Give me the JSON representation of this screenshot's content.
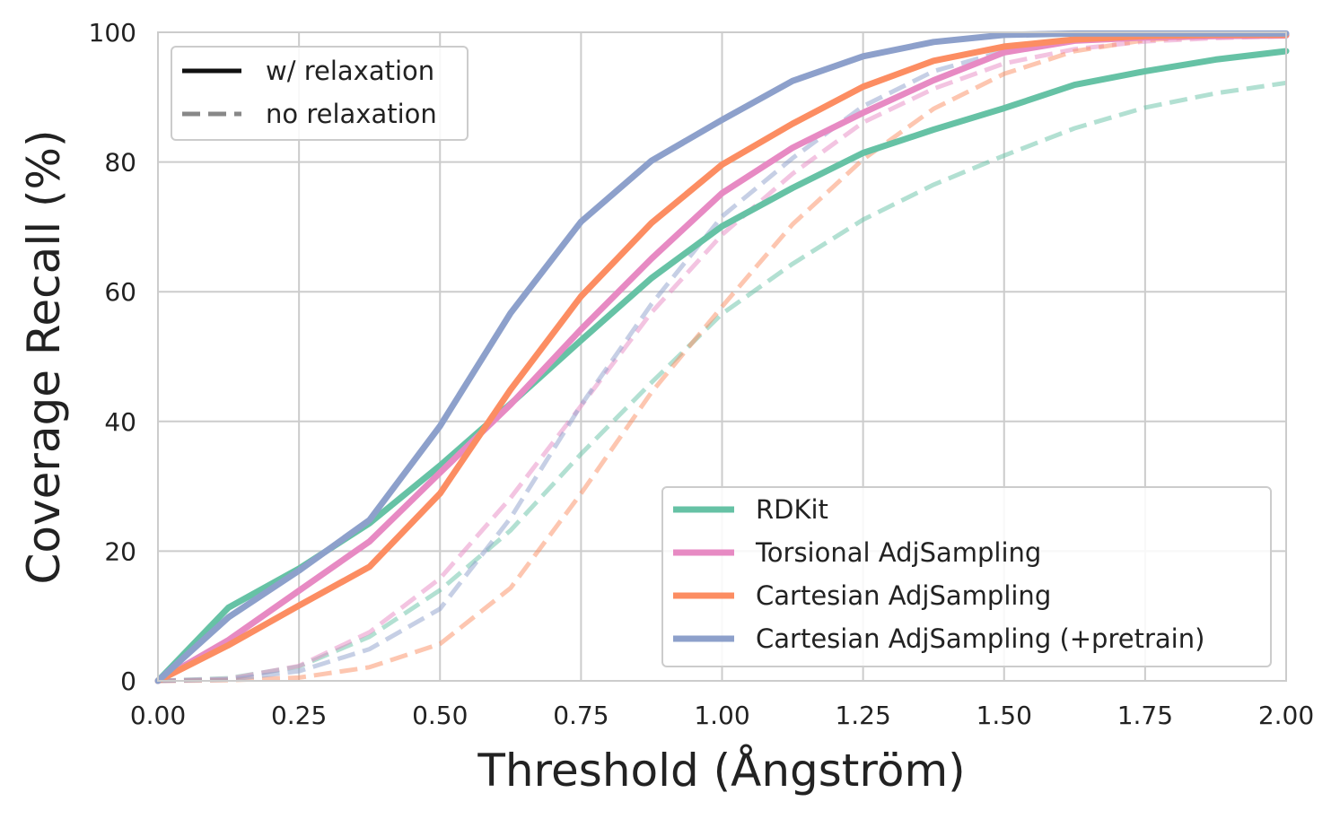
{
  "chart_data": {
    "type": "line",
    "title": "",
    "xlabel": "Threshold (Ångström)",
    "ylabel": "Coverage Recall (%)",
    "xlim": [
      0,
      2
    ],
    "ylim": [
      0,
      100
    ],
    "grid": true,
    "x_ticks": [
      "0.00",
      "0.25",
      "0.50",
      "0.75",
      "1.00",
      "1.25",
      "1.50",
      "1.75",
      "2.00"
    ],
    "y_ticks": [
      "0",
      "20",
      "40",
      "60",
      "80",
      "100"
    ],
    "style_legend": {
      "placement": "top-left",
      "entries": [
        {
          "label": "w/ relaxation",
          "dash": "solid",
          "color": "#111111"
        },
        {
          "label": "no relaxation",
          "dash": "dashed",
          "color": "#888888"
        }
      ]
    },
    "series_legend_placement": "bottom-right",
    "x": [
      0,
      0.125,
      0.25,
      0.375,
      0.5,
      0.625,
      0.75,
      0.875,
      1.0,
      1.125,
      1.25,
      1.375,
      1.5,
      1.625,
      1.75,
      1.875,
      2.0
    ],
    "series": [
      {
        "name": "RDKit",
        "color": "#66c2a5",
        "relaxed": [
          0,
          11.3,
          17.3,
          24.3,
          33.2,
          42.7,
          52.5,
          62.1,
          70.1,
          76.0,
          81.4,
          85.0,
          88.3,
          91.9,
          94.0,
          95.8,
          97.1
        ],
        "unrelaxed": [
          0,
          0.4,
          2.2,
          6.8,
          14.0,
          23.2,
          35.0,
          46.0,
          56.6,
          64.3,
          71.1,
          76.5,
          81.0,
          85.2,
          88.4,
          90.6,
          92.2
        ]
      },
      {
        "name": "Torsional AdjSampling",
        "color": "#e78ac3",
        "relaxed": [
          0,
          6.3,
          13.9,
          21.5,
          32.1,
          42.6,
          54.2,
          65.1,
          75.2,
          82.2,
          87.6,
          92.6,
          96.9,
          98.7,
          99.2,
          99.4,
          99.5
        ],
        "unrelaxed": [
          0,
          0.3,
          2.3,
          7.5,
          15.8,
          28.2,
          42.4,
          56.8,
          68.8,
          78.2,
          86.1,
          91.3,
          95.2,
          97.4,
          98.6,
          99.1,
          99.4
        ]
      },
      {
        "name": "Cartesian AdjSampling",
        "color": "#fc8d62",
        "relaxed": [
          0,
          5.5,
          11.6,
          17.6,
          28.9,
          44.9,
          59.3,
          70.6,
          79.6,
          85.9,
          91.6,
          95.6,
          97.8,
          98.9,
          99.4,
          99.6,
          99.6
        ],
        "unrelaxed": [
          0,
          0.1,
          0.5,
          2.1,
          5.7,
          14.3,
          28.9,
          44.5,
          57.7,
          70.4,
          80.4,
          88.2,
          93.6,
          97.1,
          98.8,
          99.4,
          99.6
        ]
      },
      {
        "name": "Cartesian AdjSampling (+pretrain)",
        "color": "#8da0cb",
        "relaxed": [
          0,
          9.8,
          17.0,
          24.8,
          39.3,
          56.7,
          70.8,
          80.2,
          86.5,
          92.5,
          96.3,
          98.5,
          99.6,
          99.8,
          99.8,
          99.8,
          99.8
        ],
        "unrelaxed": [
          0,
          0.2,
          1.5,
          4.9,
          11.1,
          25.1,
          42.5,
          58.1,
          71.6,
          80.6,
          88.6,
          94.0,
          97.1,
          98.6,
          99.3,
          99.6,
          99.7
        ]
      }
    ]
  }
}
